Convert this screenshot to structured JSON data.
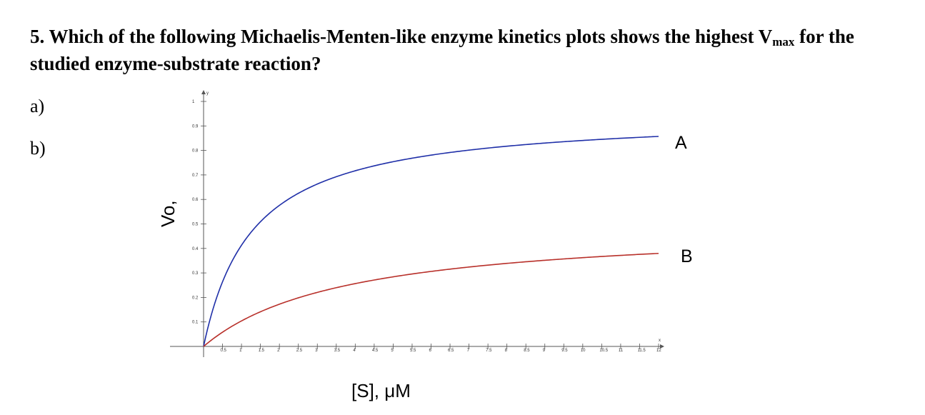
{
  "question": {
    "text_before": "5. Which of the following Michaelis-Menten-like enzyme kinetics plots shows the highest V",
    "subscript": "max",
    "text_after": " for the studied enzyme-substrate reaction?"
  },
  "options": [
    {
      "label": "a)"
    },
    {
      "label": "b)"
    }
  ],
  "chart_data": {
    "type": "line",
    "xlabel": "[S], μM",
    "ylabel": "Vo,",
    "x_axis_letter": "x",
    "y_axis_letter": "y",
    "xlim": [
      0,
      12
    ],
    "ylim": [
      0,
      1
    ],
    "x_ticks": [
      "0.5",
      "1",
      "1.5",
      "2",
      "2.5",
      "3",
      "3.5",
      "4",
      "4.5",
      "5",
      "5.5",
      "6",
      "6.5",
      "7",
      "7.5",
      "8",
      "8.5",
      "9",
      "9.5",
      "10",
      "10.5",
      "11",
      "11.5",
      "12"
    ],
    "y_ticks": [
      "0.1",
      "0.2",
      "0.3",
      "0.4",
      "0.5",
      "0.6",
      "0.7",
      "0.8",
      "0.9",
      "1"
    ],
    "series": [
      {
        "name": "A",
        "color": "#1f2fa8",
        "vmax": 0.95,
        "km": 1.3
      },
      {
        "name": "B",
        "color": "#b8302a",
        "vmax": 0.5,
        "km": 3.8
      }
    ]
  }
}
